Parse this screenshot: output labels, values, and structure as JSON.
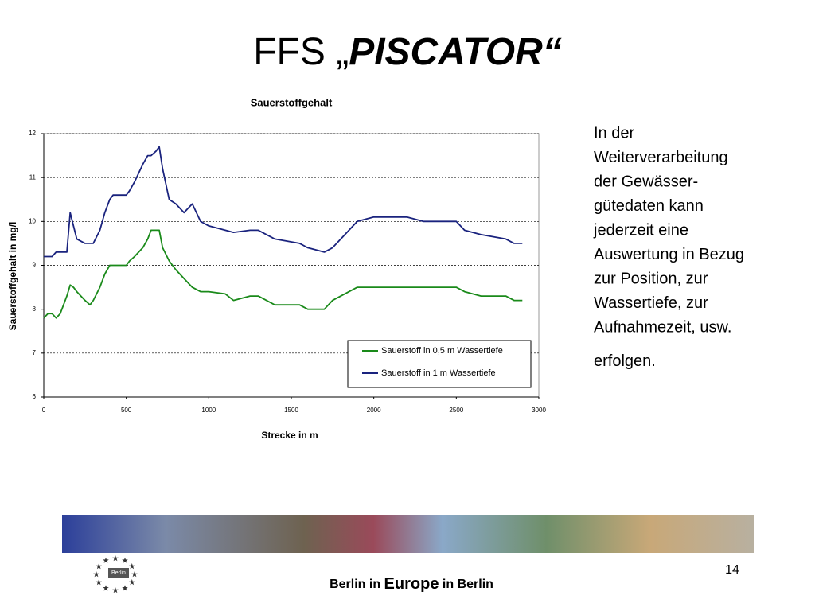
{
  "slide": {
    "title": {
      "plain": "FFS „",
      "emphasis": "PISCATOR“"
    },
    "body_lines": [
      "In der",
      "Weiterverarbeitung",
      "der Gewässer-",
      "gütedaten kann",
      "jederzeit eine",
      "Auswertung in Bezug",
      "zur Position, zur",
      "Wassertiefe, zur",
      "Aufnahmezeit, usw."
    ],
    "body_end": "erfolgen.",
    "footer": {
      "part1": "Berlin in ",
      "part2": "Europe",
      "part3": " in Berlin"
    },
    "logo_text": "Berlin",
    "page_number": "14"
  },
  "chart_data": {
    "type": "line",
    "title": "Sauerstoffgehalt",
    "x_label": "Strecke in m",
    "y_label": "Sauerstoffgehalt in mg/l",
    "x": [
      0,
      25,
      50,
      75,
      100,
      140,
      160,
      180,
      200,
      250,
      280,
      300,
      340,
      370,
      400,
      420,
      450,
      500,
      520,
      550,
      600,
      630,
      650,
      680,
      700,
      720,
      760,
      800,
      850,
      900,
      950,
      1000,
      1100,
      1150,
      1250,
      1300,
      1400,
      1550,
      1600,
      1700,
      1750,
      1800,
      1900,
      2000,
      2200,
      2300,
      2500,
      2550,
      2650,
      2800,
      2850,
      2900
    ],
    "series": [
      {
        "name": "Sauerstoff in 0,5 m Wassertiefe",
        "color": "#1a8a1a",
        "values": [
          7.8,
          7.9,
          7.9,
          7.8,
          7.9,
          8.3,
          8.55,
          8.5,
          8.4,
          8.2,
          8.1,
          8.2,
          8.5,
          8.8,
          9.0,
          9.0,
          9.0,
          9.0,
          9.1,
          9.2,
          9.4,
          9.6,
          9.8,
          9.8,
          9.8,
          9.4,
          9.1,
          8.9,
          8.7,
          8.5,
          8.4,
          8.4,
          8.35,
          8.2,
          8.3,
          8.3,
          8.1,
          8.1,
          8.0,
          8.0,
          8.2,
          8.3,
          8.5,
          8.5,
          8.5,
          8.5,
          8.5,
          8.4,
          8.3,
          8.3,
          8.2,
          8.2
        ]
      },
      {
        "name": "Sauerstoff in 1 m Wassertiefe",
        "color": "#1a237e",
        "values": [
          9.2,
          9.2,
          9.2,
          9.3,
          9.3,
          9.3,
          10.2,
          9.9,
          9.6,
          9.5,
          9.5,
          9.5,
          9.8,
          10.2,
          10.5,
          10.6,
          10.6,
          10.6,
          10.7,
          10.9,
          11.3,
          11.5,
          11.5,
          11.6,
          11.7,
          11.2,
          10.5,
          10.4,
          10.2,
          10.4,
          10.0,
          9.9,
          9.8,
          9.75,
          9.8,
          9.8,
          9.6,
          9.5,
          9.4,
          9.3,
          9.4,
          9.6,
          10.0,
          10.1,
          10.1,
          10.0,
          10.0,
          9.8,
          9.7,
          9.6,
          9.5,
          9.5
        ]
      }
    ],
    "xlim": [
      0,
      3000
    ],
    "xticks": [
      0,
      500,
      1000,
      1500,
      2000,
      2500,
      3000
    ],
    "ylim": [
      6,
      12
    ],
    "yticks": [
      6,
      7,
      8,
      9,
      10,
      11,
      12
    ],
    "grid": true,
    "legend": "lower-right"
  }
}
